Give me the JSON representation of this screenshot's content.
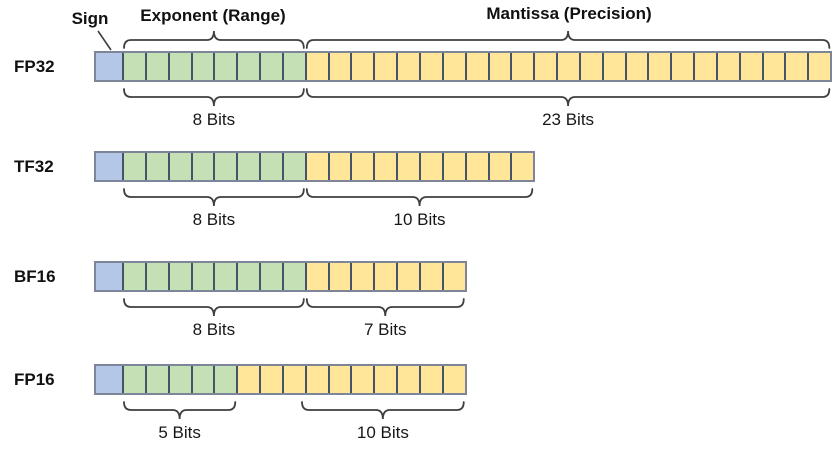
{
  "header": {
    "sign_label": "Sign",
    "exponent_label": "Exponent (Range)",
    "mantissa_label": "Mantissa (Precision)"
  },
  "colors": {
    "sign_fill": "#b4c7e7",
    "exponent_fill": "#c5e0b4",
    "mantissa_fill": "#ffe699",
    "cell_border": "#44546a",
    "outer_border": "#7c8698",
    "brace_stroke": "#3f3f3f"
  },
  "rows": [
    {
      "name": "FP32",
      "segments": [
        {
          "type": "sign",
          "bits": 1
        },
        {
          "type": "exponent",
          "bits": 8,
          "label": "8 Bits"
        },
        {
          "type": "mantissa",
          "bits": 23,
          "label": "23 Bits"
        }
      ]
    },
    {
      "name": "TF32",
      "segments": [
        {
          "type": "sign",
          "bits": 1
        },
        {
          "type": "exponent",
          "bits": 8,
          "label": "8 Bits"
        },
        {
          "type": "mantissa",
          "bits": 10,
          "label": "10 Bits"
        }
      ]
    },
    {
      "name": "BF16",
      "segments": [
        {
          "type": "sign",
          "bits": 1
        },
        {
          "type": "exponent",
          "bits": 8,
          "label": "8 Bits"
        },
        {
          "type": "mantissa",
          "bits": 7,
          "label": "7 Bits"
        }
      ]
    },
    {
      "name": "FP16",
      "segments": [
        {
          "type": "sign",
          "bits": 1
        },
        {
          "type": "exponent",
          "bits": 5,
          "label": "5 Bits"
        },
        {
          "type": "mantissa",
          "bits": 10,
          "label": "10 Bits"
        }
      ]
    }
  ]
}
